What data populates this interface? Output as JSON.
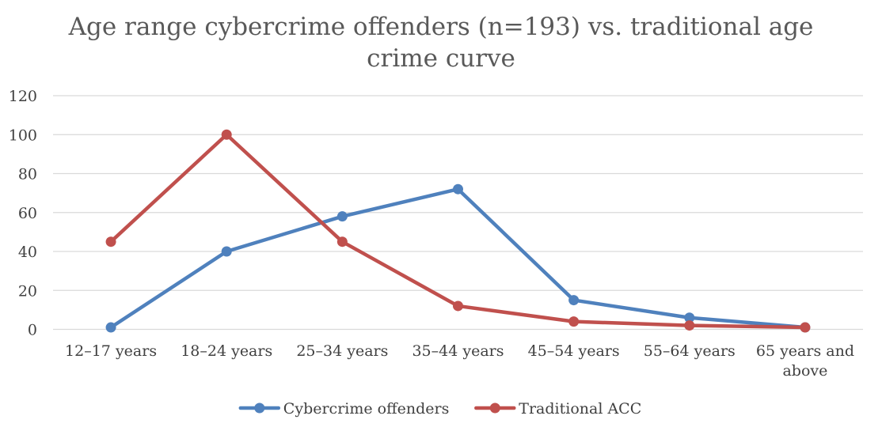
{
  "chart_data": {
    "type": "line",
    "title_lines": [
      "Age range cybercrime offenders (n=193) vs. traditional age",
      "crime curve"
    ],
    "categories": [
      "12–17 years",
      "18–24 years",
      "25–34 years",
      "35–44 years",
      "45–54 years",
      "55–64 years",
      "65 years and above"
    ],
    "category_label_lines": [
      [
        "12–17 years"
      ],
      [
        "18–24 years"
      ],
      [
        "25–34 years"
      ],
      [
        "35–44 years"
      ],
      [
        "45–54 years"
      ],
      [
        "55–64 years"
      ],
      [
        "65 years and",
        "above"
      ]
    ],
    "y_ticks": [
      0,
      20,
      40,
      60,
      80,
      100,
      120
    ],
    "ylim": [
      0,
      120
    ],
    "xlabel": "",
    "ylabel": "",
    "grid": true,
    "legend_position": "bottom",
    "series": [
      {
        "name": "Cybercrime offenders",
        "color": "#4f81bd",
        "values": [
          1,
          40,
          58,
          72,
          15,
          6,
          1
        ]
      },
      {
        "name": "Traditional ACC",
        "color": "#c0504d",
        "values": [
          45,
          100,
          45,
          12,
          4,
          2,
          1
        ]
      }
    ]
  }
}
